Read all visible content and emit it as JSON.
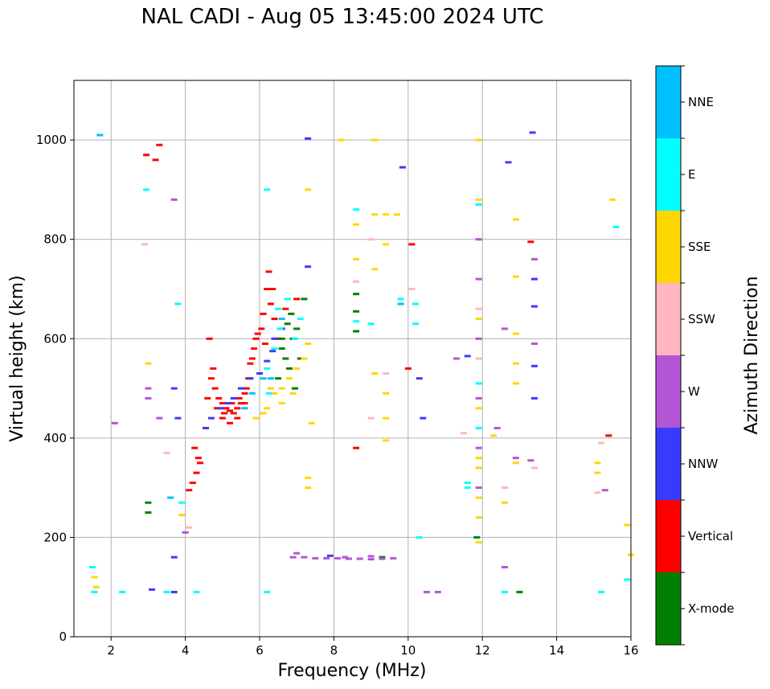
{
  "chart_data": {
    "type": "scatter",
    "title": "NAL CADI - Aug 05 13:45:00 2024 UTC",
    "xlabel": "Frequency (MHz)",
    "ylabel": "Virtual height (km)",
    "xlim": [
      1,
      16
    ],
    "ylim": [
      0,
      1120
    ],
    "xticks": [
      "2",
      "4",
      "6",
      "8",
      "10",
      "12",
      "14",
      "16"
    ],
    "yticks": [
      "0",
      "200",
      "400",
      "600",
      "800",
      "1000"
    ],
    "grid": true,
    "colorbar": {
      "label": "Azimuth Direction",
      "position": "right",
      "categories": [
        {
          "name": "X-mode",
          "color": "#008000"
        },
        {
          "name": "Vertical",
          "color": "#ff0000"
        },
        {
          "name": "NNW",
          "color": "#3a3aff"
        },
        {
          "name": "W",
          "color": "#b455d6"
        },
        {
          "name": "SSW",
          "color": "#ffb6c1"
        },
        {
          "name": "SSE",
          "color": "#ffd700"
        },
        {
          "name": "E",
          "color": "#00ffff"
        },
        {
          "name": "NNE",
          "color": "#00bfff"
        }
      ]
    },
    "series": [
      {
        "name": "Vertical",
        "points": [
          [
            4.75,
            540
          ],
          [
            4.7,
            520
          ],
          [
            4.8,
            500
          ],
          [
            4.9,
            480
          ],
          [
            5.0,
            470
          ],
          [
            5.1,
            460
          ],
          [
            5.2,
            455
          ],
          [
            5.3,
            450
          ],
          [
            5.4,
            460
          ],
          [
            5.5,
            470
          ],
          [
            5.6,
            490
          ],
          [
            5.7,
            520
          ],
          [
            5.75,
            550
          ],
          [
            5.85,
            580
          ],
          [
            5.95,
            610
          ],
          [
            6.1,
            650
          ],
          [
            6.2,
            700
          ],
          [
            6.25,
            735
          ],
          [
            6.3,
            670
          ],
          [
            6.4,
            640
          ],
          [
            6.5,
            600
          ],
          [
            5.0,
            440
          ],
          [
            5.2,
            430
          ],
          [
            5.4,
            440
          ],
          [
            5.6,
            470
          ],
          [
            5.8,
            560
          ],
          [
            4.6,
            480
          ],
          [
            4.65,
            600
          ],
          [
            4.85,
            460
          ],
          [
            5.05,
            450
          ],
          [
            5.25,
            470
          ],
          [
            5.45,
            480
          ],
          [
            5.65,
            500
          ],
          [
            5.9,
            600
          ],
          [
            6.05,
            620
          ],
          [
            6.15,
            590
          ],
          [
            6.35,
            700
          ],
          [
            6.7,
            660
          ],
          [
            7.0,
            680
          ],
          [
            4.4,
            350
          ],
          [
            4.3,
            330
          ],
          [
            4.2,
            310
          ],
          [
            4.1,
            295
          ],
          [
            4.25,
            380
          ],
          [
            4.35,
            360
          ],
          [
            10.0,
            540
          ],
          [
            10.1,
            790
          ],
          [
            13.3,
            795
          ],
          [
            15.4,
            405
          ],
          [
            8.6,
            380
          ],
          [
            3.2,
            960
          ],
          [
            3.3,
            990
          ],
          [
            2.95,
            970
          ]
        ]
      },
      {
        "name": "X-mode",
        "points": [
          [
            6.6,
            580
          ],
          [
            6.7,
            560
          ],
          [
            6.8,
            540
          ],
          [
            6.9,
            600
          ],
          [
            7.0,
            620
          ],
          [
            6.75,
            630
          ],
          [
            6.5,
            520
          ],
          [
            6.95,
            500
          ],
          [
            7.1,
            560
          ],
          [
            6.6,
            600
          ],
          [
            6.85,
            650
          ],
          [
            7.2,
            680
          ],
          [
            8.6,
            690
          ],
          [
            8.6,
            655
          ],
          [
            8.6,
            615
          ],
          [
            9.3,
            160
          ],
          [
            13.0,
            90
          ],
          [
            11.85,
            200
          ],
          [
            3.0,
            270
          ],
          [
            3.0,
            250
          ]
        ]
      },
      {
        "name": "NNW",
        "points": [
          [
            4.7,
            440
          ],
          [
            4.95,
            460
          ],
          [
            5.3,
            480
          ],
          [
            5.5,
            500
          ],
          [
            5.75,
            520
          ],
          [
            6.0,
            530
          ],
          [
            6.2,
            555
          ],
          [
            6.35,
            575
          ],
          [
            4.55,
            420
          ],
          [
            5.15,
            470
          ],
          [
            6.4,
            600
          ],
          [
            6.6,
            620
          ],
          [
            13.4,
            720
          ],
          [
            13.4,
            665
          ],
          [
            13.4,
            545
          ],
          [
            13.4,
            480
          ],
          [
            13.35,
            1015
          ],
          [
            12.7,
            955
          ],
          [
            11.6,
            565
          ],
          [
            10.4,
            440
          ],
          [
            10.3,
            520
          ],
          [
            9.85,
            945
          ],
          [
            7.3,
            745
          ],
          [
            7.3,
            1003
          ],
          [
            7.9,
            163
          ],
          [
            3.7,
            160
          ],
          [
            3.7,
            500
          ],
          [
            1.5,
            140
          ],
          [
            3.8,
            440
          ],
          [
            3.1,
            95
          ],
          [
            3.7,
            90
          ]
        ]
      },
      {
        "name": "W",
        "points": [
          [
            6.9,
            160
          ],
          [
            7.2,
            160
          ],
          [
            7.5,
            158
          ],
          [
            7.8,
            158
          ],
          [
            8.1,
            158
          ],
          [
            8.4,
            157
          ],
          [
            8.7,
            157
          ],
          [
            9.0,
            156
          ],
          [
            9.3,
            157
          ],
          [
            9.6,
            158
          ],
          [
            7.0,
            168
          ],
          [
            8.3,
            160
          ],
          [
            9.0,
            162
          ],
          [
            11.9,
            800
          ],
          [
            11.9,
            720
          ],
          [
            11.9,
            600
          ],
          [
            11.9,
            480
          ],
          [
            11.9,
            380
          ],
          [
            11.9,
            300
          ],
          [
            12.6,
            620
          ],
          [
            12.6,
            140
          ],
          [
            13.4,
            590
          ],
          [
            13.4,
            760
          ],
          [
            13.3,
            355
          ],
          [
            15.3,
            295
          ],
          [
            12.4,
            420
          ],
          [
            12.9,
            360
          ],
          [
            10.5,
            90
          ],
          [
            10.8,
            90
          ],
          [
            11.3,
            560
          ],
          [
            3.0,
            500
          ],
          [
            3.0,
            480
          ],
          [
            3.3,
            440
          ],
          [
            3.7,
            880
          ],
          [
            4.0,
            210
          ],
          [
            2.1,
            430
          ]
        ]
      },
      {
        "name": "SSW",
        "points": [
          [
            9.0,
            800
          ],
          [
            8.6,
            715
          ],
          [
            9.0,
            440
          ],
          [
            9.4,
            530
          ],
          [
            10.1,
            700
          ],
          [
            12.6,
            300
          ],
          [
            13.4,
            340
          ],
          [
            15.2,
            390
          ],
          [
            4.1,
            220
          ],
          [
            2.9,
            790
          ],
          [
            3.5,
            370
          ],
          [
            15.1,
            290
          ],
          [
            11.5,
            410
          ],
          [
            11.9,
            660
          ],
          [
            11.9,
            560
          ]
        ]
      },
      {
        "name": "SSE",
        "points": [
          [
            5.9,
            440
          ],
          [
            6.2,
            460
          ],
          [
            6.4,
            490
          ],
          [
            6.6,
            500
          ],
          [
            6.8,
            520
          ],
          [
            7.0,
            540
          ],
          [
            7.2,
            560
          ],
          [
            7.3,
            590
          ],
          [
            6.6,
            470
          ],
          [
            6.9,
            490
          ],
          [
            6.3,
            500
          ],
          [
            6.1,
            450
          ],
          [
            9.1,
            740
          ],
          [
            9.1,
            850
          ],
          [
            9.4,
            850
          ],
          [
            9.4,
            790
          ],
          [
            9.7,
            850
          ],
          [
            8.6,
            760
          ],
          [
            8.6,
            830
          ],
          [
            9.1,
            1000
          ],
          [
            9.1,
            530
          ],
          [
            9.4,
            490
          ],
          [
            9.4,
            440
          ],
          [
            9.4,
            395
          ],
          [
            12.9,
            840
          ],
          [
            12.9,
            725
          ],
          [
            12.9,
            610
          ],
          [
            12.9,
            550
          ],
          [
            12.9,
            510
          ],
          [
            12.9,
            350
          ],
          [
            12.6,
            270
          ],
          [
            11.9,
            280
          ],
          [
            11.9,
            240
          ],
          [
            11.9,
            190
          ],
          [
            11.9,
            360
          ],
          [
            11.9,
            340
          ],
          [
            11.9,
            460
          ],
          [
            11.9,
            1000
          ],
          [
            11.9,
            880
          ],
          [
            11.9,
            640
          ],
          [
            15.1,
            350
          ],
          [
            15.1,
            330
          ],
          [
            15.5,
            880
          ],
          [
            15.9,
            225
          ],
          [
            16.0,
            165
          ],
          [
            7.3,
            320
          ],
          [
            7.3,
            300
          ],
          [
            7.3,
            900
          ],
          [
            7.4,
            430
          ],
          [
            8.2,
            1000
          ],
          [
            12.3,
            405
          ],
          [
            1.55,
            120
          ],
          [
            1.6,
            100
          ],
          [
            3.0,
            550
          ],
          [
            3.9,
            245
          ]
        ]
      },
      {
        "name": "E",
        "points": [
          [
            6.2,
            540
          ],
          [
            6.4,
            580
          ],
          [
            6.55,
            620
          ],
          [
            6.75,
            680
          ],
          [
            6.95,
            600
          ],
          [
            7.1,
            640
          ],
          [
            6.25,
            490
          ],
          [
            6.5,
            660
          ],
          [
            8.6,
            860
          ],
          [
            8.6,
            635
          ],
          [
            9.0,
            630
          ],
          [
            9.8,
            680
          ],
          [
            10.2,
            670
          ],
          [
            10.2,
            630
          ],
          [
            11.9,
            510
          ],
          [
            11.9,
            870
          ],
          [
            11.6,
            310
          ],
          [
            11.6,
            300
          ],
          [
            11.9,
            420
          ],
          [
            10.3,
            200
          ],
          [
            15.6,
            825
          ],
          [
            15.9,
            115
          ],
          [
            15.2,
            90
          ],
          [
            12.6,
            90
          ],
          [
            6.2,
            900
          ],
          [
            6.2,
            90
          ],
          [
            2.95,
            900
          ],
          [
            3.5,
            90
          ],
          [
            4.3,
            90
          ],
          [
            3.8,
            670
          ],
          [
            3.9,
            270
          ],
          [
            1.55,
            90
          ],
          [
            1.5,
            140
          ],
          [
            2.3,
            90
          ]
        ]
      },
      {
        "name": "NNE",
        "points": [
          [
            5.8,
            490
          ],
          [
            6.1,
            520
          ],
          [
            5.6,
            460
          ],
          [
            6.3,
            520
          ],
          [
            6.6,
            640
          ],
          [
            9.8,
            670
          ],
          [
            3.6,
            280
          ],
          [
            1.7,
            1010
          ]
        ]
      }
    ]
  }
}
